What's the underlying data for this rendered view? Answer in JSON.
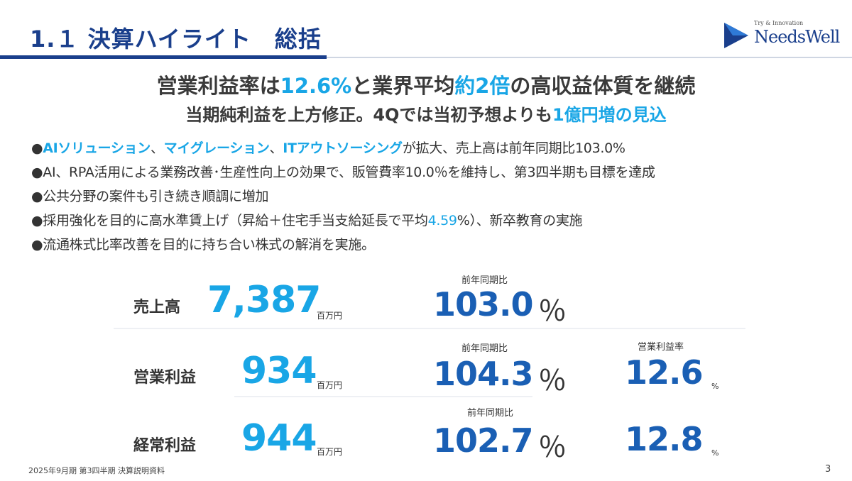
{
  "header": {
    "title": "1.１ 決算ハイライト　総括",
    "logo_tagline": "Try & Innovation",
    "logo_name": "NeedsWell"
  },
  "headline": {
    "line1_a": "営業利益率は",
    "line1_b": "12.6%",
    "line1_c": "と業界平均",
    "line1_d": "約2倍",
    "line1_e": "の高収益体質を継続",
    "line2_a": "当期純利益を上方修正。4Qでは当初予想よりも",
    "line2_b": "1億円増の見込"
  },
  "bullets": {
    "b1_dot": "●",
    "b1_h1": "AIソリューション",
    "b1_s1": "、",
    "b1_h2": "マイグレーション",
    "b1_s2": "、",
    "b1_h3": "ITアウトソーシング",
    "b1_rest": "が拡大、売上高は前年同期比103.0%",
    "b2": "●AI、RPA活用による業務改善･生産性向上の効果で、販管費率10.0％を維持し、第3四半期も目標を達成",
    "b3": "●公共分野の案件も引き続き順調に増加",
    "b4_a": "●採用強化を目的に高水準賃上げ（昇給＋住宅手当支給延長で平均",
    "b4_b": "4.59",
    "b4_c": "%）、新卒教育の実施",
    "b5": "●流通株式比率改善を目的に持ち合い株式の解消を実施。"
  },
  "kpi": {
    "sales": {
      "label": "売上高",
      "value": "7,387",
      "unit": "百万円",
      "yoy_label": "前年同期比",
      "yoy": "103.0",
      "pct": "％"
    },
    "operating": {
      "label": "営業利益",
      "value": "934",
      "unit": "百万円",
      "yoy_label": "前年同期比",
      "yoy": "104.3",
      "pct": "％",
      "rate_label": "営業利益率",
      "rate": "12.6",
      "rate_pct": "%"
    },
    "ordinary": {
      "label": "経常利益",
      "value": "944",
      "unit": "百万円",
      "yoy_label": "前年同期比",
      "yoy": "102.7",
      "pct": "％",
      "rate": "12.8",
      "rate_pct": "%"
    }
  },
  "footer": {
    "text": "2025年9月期 第3四半期 決算説明資料",
    "page": "3"
  },
  "colors": {
    "navy": "#1a3f8c",
    "accent": "#19a6e6",
    "kpi_blue": "#1a5fb4"
  }
}
